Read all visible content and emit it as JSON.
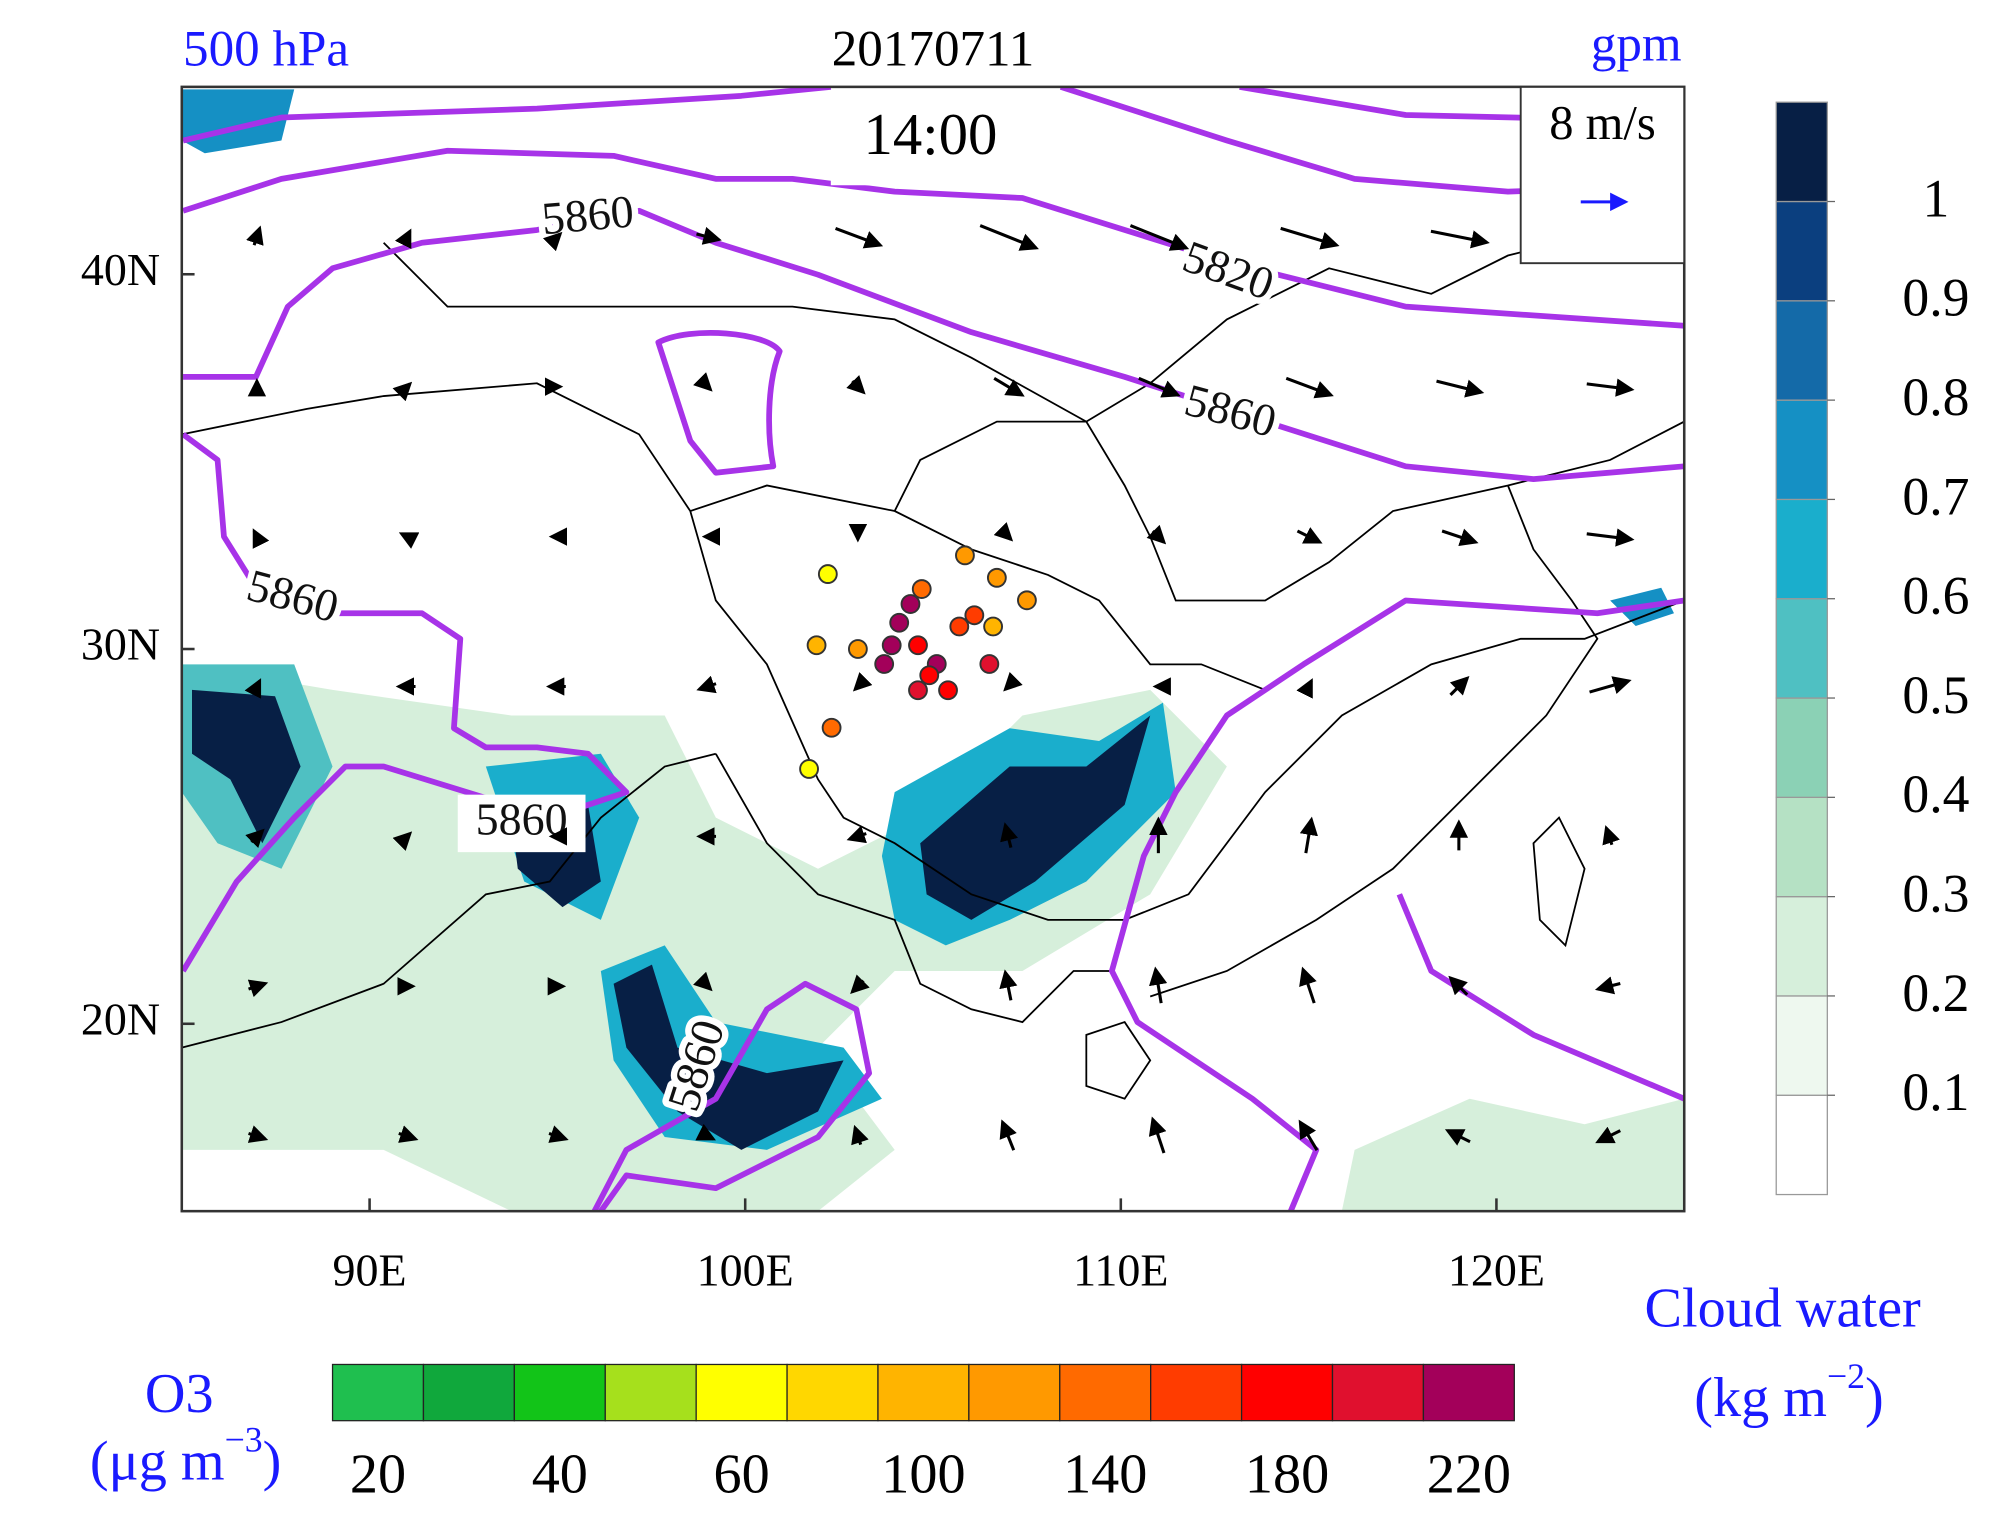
{
  "header": {
    "level": "500 hPa",
    "date": "20170711",
    "unit": "gpm",
    "time": "14:00"
  },
  "map": {
    "xlim": [
      85,
      125
    ],
    "ylim": [
      15,
      45
    ],
    "xticks": [
      {
        "value": 90,
        "label": "90E"
      },
      {
        "value": 100,
        "label": "100E"
      },
      {
        "value": 110,
        "label": "110E"
      },
      {
        "value": 120,
        "label": "120E"
      }
    ],
    "yticks": [
      {
        "value": 20,
        "label": "20N"
      },
      {
        "value": 30,
        "label": "30N"
      },
      {
        "value": 40,
        "label": "40N"
      }
    ]
  },
  "contour_labels": [
    5860,
    5820,
    5860,
    5860,
    5860,
    5860
  ],
  "wind_legend": {
    "value": 8,
    "label": "8 m/s"
  },
  "wind": {
    "lon": [
      87,
      91,
      95,
      99,
      103,
      107,
      111,
      115,
      119,
      123
    ],
    "lat": [
      17,
      21,
      25,
      29,
      33,
      37,
      41
    ],
    "u": [
      [
        3,
        3,
        3,
        2,
        -1,
        -2,
        -2,
        -3,
        -4,
        -4
      ],
      [
        3,
        2,
        2,
        1,
        -2,
        -1,
        -1,
        -2,
        -3,
        -4
      ],
      [
        2,
        1,
        -2,
        -3,
        -3,
        -1,
        0,
        1,
        0,
        -1
      ],
      [
        1,
        -3,
        -3,
        -3,
        -1,
        -1,
        -1,
        1,
        3,
        7
      ],
      [
        -1,
        -2,
        -2,
        -1,
        0,
        1,
        2,
        4,
        6,
        8
      ],
      [
        0,
        1,
        1,
        1,
        2,
        5,
        7,
        8,
        8,
        8
      ],
      [
        1,
        1,
        1,
        4,
        8,
        10,
        10,
        10,
        10,
        9
      ]
    ],
    "v": [
      [
        -1,
        -1,
        -1,
        -1,
        3,
        5,
        6,
        5,
        2,
        -2
      ],
      [
        1,
        0,
        0,
        -1,
        -2,
        5,
        6,
        6,
        3,
        -1
      ],
      [
        2,
        1,
        0,
        0,
        -1,
        4,
        6,
        6,
        5,
        3
      ],
      [
        2,
        0,
        0,
        -1,
        -1,
        -1,
        0,
        2,
        3,
        2
      ],
      [
        2,
        1,
        0,
        0,
        -1,
        -1,
        -2,
        -2,
        -2,
        -1
      ],
      [
        2,
        1,
        0,
        -1,
        -2,
        -3,
        -3,
        -3,
        -2,
        -1
      ],
      [
        3,
        2,
        1,
        -1,
        -3,
        -4,
        -4,
        -3,
        -2,
        -1
      ]
    ]
  },
  "stations": [
    {
      "lon": 102.2,
      "lat": 32.0,
      "o3": 60
    },
    {
      "lon": 105.85,
      "lat": 32.5,
      "o3": 120
    },
    {
      "lon": 104.7,
      "lat": 31.6,
      "o3": 150
    },
    {
      "lon": 106.7,
      "lat": 31.9,
      "o3": 120
    },
    {
      "lon": 104.4,
      "lat": 31.2,
      "o3": 225
    },
    {
      "lon": 101.9,
      "lat": 30.1,
      "o3": 100
    },
    {
      "lon": 103.0,
      "lat": 30.0,
      "o3": 130
    },
    {
      "lon": 104.1,
      "lat": 30.7,
      "o3": 225
    },
    {
      "lon": 105.7,
      "lat": 30.6,
      "o3": 160
    },
    {
      "lon": 106.1,
      "lat": 30.9,
      "o3": 170
    },
    {
      "lon": 107.5,
      "lat": 31.3,
      "o3": 130
    },
    {
      "lon": 106.6,
      "lat": 30.6,
      "o3": 110
    },
    {
      "lon": 103.9,
      "lat": 30.1,
      "o3": 225
    },
    {
      "lon": 104.6,
      "lat": 30.1,
      "o3": 180
    },
    {
      "lon": 103.7,
      "lat": 29.6,
      "o3": 225
    },
    {
      "lon": 105.1,
      "lat": 29.6,
      "o3": 225
    },
    {
      "lon": 104.9,
      "lat": 29.3,
      "o3": 190
    },
    {
      "lon": 106.5,
      "lat": 29.6,
      "o3": 200
    },
    {
      "lon": 104.6,
      "lat": 28.9,
      "o3": 200
    },
    {
      "lon": 105.4,
      "lat": 28.9,
      "o3": 190
    },
    {
      "lon": 102.3,
      "lat": 27.9,
      "o3": 140
    },
    {
      "lon": 101.7,
      "lat": 26.8,
      "o3": 70
    }
  ],
  "cloud_colorbar": {
    "title": "Cloud water",
    "unit_parts": [
      "(kg m",
      "−2",
      ")"
    ],
    "levels": [
      0.1,
      0.2,
      0.3,
      0.4,
      0.5,
      0.6,
      0.7,
      0.8,
      0.9,
      1
    ],
    "colors": [
      "#ffffff",
      "#eef8ef",
      "#d6efdb",
      "#b5e1c4",
      "#8bd1b5",
      "#4fc0c2",
      "#1aaecc",
      "#1590c4",
      "#146aa8",
      "#0b3f7f",
      "#071f45"
    ]
  },
  "o3_colorbar": {
    "title": "O3",
    "unit_parts": [
      "(μg m",
      "−3",
      ")"
    ],
    "levels": [
      20,
      30,
      40,
      50,
      60,
      80,
      100,
      120,
      140,
      160,
      180,
      200,
      220
    ],
    "colors": [
      "#1fbf4f",
      "#10a83c",
      "#12c418",
      "#a6e01c",
      "#ffff00",
      "#ffd700",
      "#ffb400",
      "#ff9900",
      "#ff6a00",
      "#ff3c00",
      "#ff0000",
      "#e0102e",
      "#a3005a"
    ]
  }
}
